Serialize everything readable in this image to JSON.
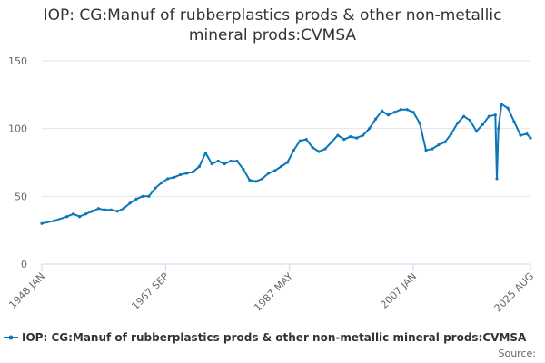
{
  "chart_data": {
    "type": "line",
    "title": "IOP: CG:Manuf of rubberplastics prods & other non-metallic mineral prods:CVMSA",
    "x": [
      "1948 JAN",
      "1950 JAN",
      "1952 JAN",
      "1953 JAN",
      "1954 JAN",
      "1955 JAN",
      "1956 JAN",
      "1957 JAN",
      "1958 JAN",
      "1959 JAN",
      "1960 JAN",
      "1961 JAN",
      "1962 JAN",
      "1963 JAN",
      "1964 JAN",
      "1965 JAN",
      "1966 JAN",
      "1967 JAN",
      "1968 JAN",
      "1969 JAN",
      "1970 JAN",
      "1971 JAN",
      "1972 JAN",
      "1973 JAN",
      "1974 JAN",
      "1975 JAN",
      "1976 JAN",
      "1977 JAN",
      "1978 JAN",
      "1979 JAN",
      "1980 JAN",
      "1981 JAN",
      "1982 JAN",
      "1983 JAN",
      "1984 JAN",
      "1985 JAN",
      "1986 JAN",
      "1987 JAN",
      "1988 JAN",
      "1989 JAN",
      "1990 JAN",
      "1991 JAN",
      "1992 JAN",
      "1993 JAN",
      "1994 JAN",
      "1995 JAN",
      "1996 JAN",
      "1997 JAN",
      "1998 JAN",
      "1999 JAN",
      "2000 JAN",
      "2001 JAN",
      "2002 JAN",
      "2003 JAN",
      "2004 JAN",
      "2005 JAN",
      "2006 JAN",
      "2007 JAN",
      "2008 JAN",
      "2009 JAN",
      "2010 JAN",
      "2011 JAN",
      "2012 JAN",
      "2013 JAN",
      "2014 JAN",
      "2015 JAN",
      "2016 JAN",
      "2017 JAN",
      "2018 JAN",
      "2019 JAN",
      "2020 JAN",
      "2020 APR",
      "2020 JUL",
      "2021 JAN",
      "2022 JAN",
      "2023 JAN",
      "2024 JAN",
      "2025 JAN",
      "2025 AUG"
    ],
    "series": [
      {
        "name": "IOP: CG:Manuf of rubberplastics prods & other non-metallic mineral prods:CVMSA",
        "color": "#0b76b8",
        "values": [
          30,
          32,
          35,
          37,
          35,
          37,
          39,
          41,
          40,
          40,
          39,
          41,
          45,
          48,
          50,
          50,
          56,
          60,
          63,
          64,
          66,
          67,
          68,
          72,
          82,
          74,
          76,
          74,
          76,
          76,
          70,
          62,
          61,
          63,
          67,
          69,
          72,
          75,
          84,
          91,
          92,
          86,
          83,
          85,
          90,
          95,
          92,
          94,
          93,
          95,
          100,
          107,
          113,
          110,
          112,
          114,
          114,
          112,
          104,
          84,
          85,
          88,
          90,
          96,
          104,
          109,
          106,
          98,
          103,
          109,
          110,
          63,
          100,
          118,
          115,
          105,
          95,
          96,
          93
        ]
      }
    ],
    "xticks": [
      "1948 JAN",
      "1967 SEP",
      "1987 MAY",
      "2007 JAN",
      "2025 AUG"
    ],
    "ylim": [
      0,
      150
    ],
    "yticks": [
      0,
      50,
      100,
      150
    ],
    "grid": true,
    "source": "Source:"
  }
}
